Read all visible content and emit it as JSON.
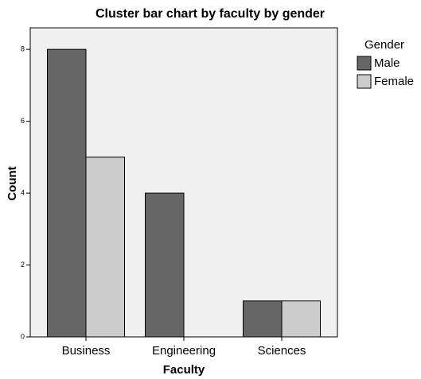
{
  "chart_data": {
    "type": "bar",
    "title": "Cluster bar chart by faculty by gender",
    "x_label": "Faculty",
    "y_label": "Count",
    "legend_title": "Gender",
    "categories": [
      "Business",
      "Engineering",
      "Sciences"
    ],
    "series": [
      {
        "name": "Male",
        "color": "#666666",
        "values": [
          8,
          4,
          1
        ]
      },
      {
        "name": "Female",
        "color": "#cccccc",
        "values": [
          5,
          0,
          1
        ]
      }
    ],
    "ylim": [
      0,
      8.6
    ],
    "yticks": [
      0,
      2,
      4,
      6,
      8
    ],
    "legend": "right"
  }
}
